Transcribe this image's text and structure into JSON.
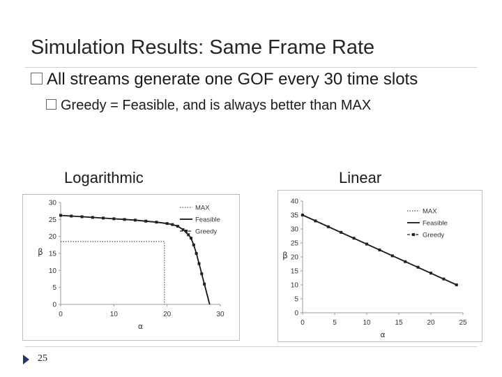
{
  "slide": {
    "title": "Simulation Results: Same Frame Rate",
    "bullet1": "All streams generate one GOF every 30 time slots",
    "bullet2": "Greedy = Feasible, and is always better than MAX",
    "page_number": "25"
  },
  "chart_data": [
    {
      "type": "line",
      "subtitle": "Logarithmic",
      "xlabel": "α",
      "ylabel": "β",
      "xlim": [
        0,
        30
      ],
      "ylim": [
        0,
        30
      ],
      "xticks": [
        0,
        10,
        20,
        30
      ],
      "yticks": [
        0,
        5,
        10,
        15,
        20,
        25,
        30
      ],
      "grid": false,
      "legend_position": "top-right",
      "series": [
        {
          "name": "MAX",
          "style": "dotted",
          "x": [
            0,
            19.5,
            19.5
          ],
          "y": [
            18.5,
            18.5,
            0
          ]
        },
        {
          "name": "Feasible",
          "style": "solid",
          "x": [
            0,
            2,
            4,
            6,
            8,
            10,
            12,
            14,
            16,
            18,
            20,
            21,
            22,
            23,
            24,
            24.5,
            25,
            25.5,
            26,
            26.5,
            27,
            27.5,
            28
          ],
          "y": [
            26.2,
            26.0,
            25.8,
            25.6,
            25.4,
            25.2,
            25.0,
            24.8,
            24.5,
            24.2,
            23.8,
            23.5,
            23.0,
            22.0,
            20.5,
            19.5,
            17.5,
            15.0,
            12.0,
            9.0,
            6.0,
            3.0,
            0
          ]
        },
        {
          "name": "Greedy",
          "style": "dashed-marker",
          "x": [
            0,
            2,
            4,
            6,
            8,
            10,
            12,
            14,
            16,
            18,
            20,
            21,
            22,
            23,
            24,
            24.5,
            25,
            25.5,
            26,
            26.5,
            27
          ],
          "y": [
            26.2,
            26.0,
            25.8,
            25.6,
            25.4,
            25.2,
            25.0,
            24.8,
            24.5,
            24.2,
            23.8,
            23.5,
            23.0,
            22.0,
            20.5,
            19.5,
            17.5,
            15.0,
            12.0,
            9.0,
            6.0
          ]
        }
      ]
    },
    {
      "type": "line",
      "subtitle": "Linear",
      "xlabel": "α",
      "ylabel": "β",
      "xlim": [
        0,
        25
      ],
      "ylim": [
        0,
        40
      ],
      "xticks": [
        0,
        5,
        10,
        15,
        20,
        25
      ],
      "yticks": [
        0,
        5,
        10,
        15,
        20,
        25,
        30,
        35,
        40
      ],
      "grid": false,
      "legend_position": "top-right",
      "series": [
        {
          "name": "MAX",
          "style": "dotted",
          "x": [],
          "y": []
        },
        {
          "name": "Feasible",
          "style": "solid",
          "x": [
            0,
            24
          ],
          "y": [
            35,
            10
          ]
        },
        {
          "name": "Greedy",
          "style": "dashed-marker",
          "x": [
            0,
            2,
            4,
            6,
            8,
            10,
            12,
            14,
            16,
            18,
            20,
            22,
            24
          ],
          "y": [
            35,
            32.9,
            30.8,
            28.8,
            26.7,
            24.6,
            22.5,
            20.4,
            18.3,
            16.3,
            14.2,
            12.1,
            10
          ]
        }
      ]
    }
  ]
}
